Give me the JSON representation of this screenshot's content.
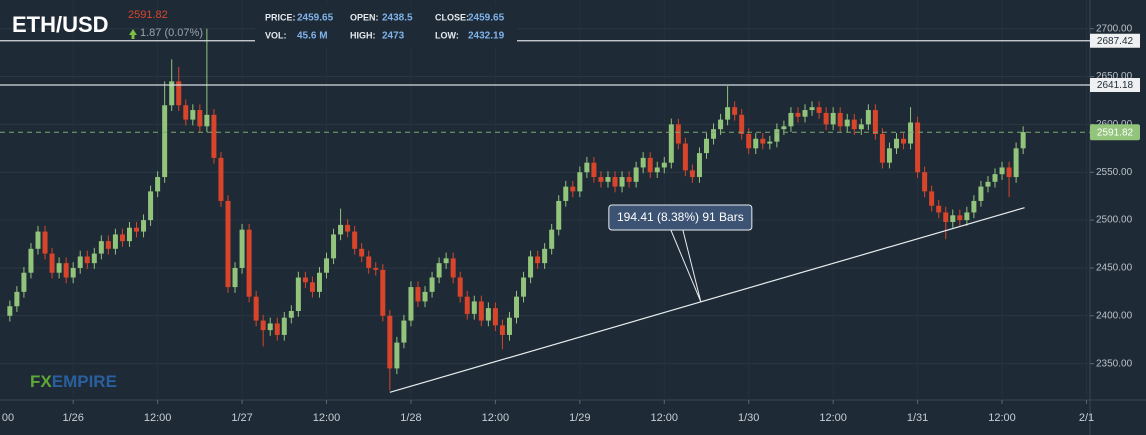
{
  "chart_data": {
    "type": "candlestick",
    "title": "ETH/USD",
    "last_price": 2591.82,
    "change": "1.87 (0.07%)",
    "stats": [
      {
        "label": "PRICE:",
        "value": 2459.65
      },
      {
        "label": "OPEN:",
        "value": 2438.5
      },
      {
        "label": "CLOSE:",
        "value": 2459.65
      },
      {
        "label": "VOL:",
        "value": "45.6 M"
      },
      {
        "label": "HIGH:",
        "value": 2473
      },
      {
        "label": "LOW:",
        "value": 2432.19
      }
    ],
    "watermark": [
      "FX",
      "EMPIRE"
    ],
    "up_color": "#92c47c",
    "down_color": "#d9452b",
    "xlim": [
      -10.4,
      144.5
    ],
    "ylim": [
      2312,
      2730
    ],
    "xticks": [
      {
        "value": -12,
        "label": "00"
      },
      {
        "value": 0,
        "label": "1/26"
      },
      {
        "value": 12,
        "label": "12:00"
      },
      {
        "value": 24,
        "label": "1/27"
      },
      {
        "value": 36,
        "label": "12:00"
      },
      {
        "value": 48,
        "label": "1/28"
      },
      {
        "value": 60,
        "label": "12:00"
      },
      {
        "value": 72,
        "label": "1/29"
      },
      {
        "value": 84,
        "label": "12:00"
      },
      {
        "value": 96,
        "label": "1/30"
      },
      {
        "value": 108,
        "label": "12:00"
      },
      {
        "value": 120,
        "label": "1/31"
      },
      {
        "value": 132,
        "label": "12:00"
      },
      {
        "value": 144,
        "label": "2/1"
      }
    ],
    "yticks": [
      {
        "value": 2350,
        "label": "2350.00"
      },
      {
        "value": 2400,
        "label": "2400.00"
      },
      {
        "value": 2450,
        "label": "2450.00"
      },
      {
        "value": 2500,
        "label": "2500.00"
      },
      {
        "value": 2550,
        "label": "2550.00"
      },
      {
        "value": 2600,
        "label": "2600.00"
      },
      {
        "value": 2650,
        "label": "2650.00"
      },
      {
        "value": 2700,
        "label": "2700.00"
      }
    ],
    "grid": true,
    "levels": [
      2687.42,
      2641.18
    ],
    "trendline": {
      "label": "194.41 (8.38%) 91 Bars",
      "x": [
        45,
        135.2
      ],
      "y": [
        2320,
        2513
      ]
    },
    "x": [
      -9,
      -8,
      -7,
      -6,
      -5,
      -4,
      -3,
      -2,
      -1,
      0,
      1,
      2,
      3,
      4,
      5,
      6,
      7,
      8,
      9,
      10,
      11,
      12,
      13,
      14,
      15,
      16,
      17,
      18,
      19,
      20,
      21,
      22,
      23,
      24,
      25,
      26,
      27,
      28,
      29,
      30,
      31,
      32,
      33,
      34,
      35,
      36,
      37,
      38,
      39,
      40,
      41,
      42,
      43,
      44,
      45,
      46,
      47,
      48,
      49,
      50,
      51,
      52,
      53,
      54,
      55,
      56,
      57,
      58,
      59,
      60,
      61,
      62,
      63,
      64,
      65,
      66,
      67,
      68,
      69,
      70,
      71,
      72,
      73,
      74,
      75,
      76,
      77,
      78,
      79,
      80,
      81,
      82,
      83,
      84,
      85,
      86,
      87,
      88,
      89,
      90,
      91,
      92,
      93,
      94,
      95,
      96,
      97,
      98,
      99,
      100,
      101,
      102,
      103,
      104,
      105,
      106,
      107,
      108,
      109,
      110,
      111,
      112,
      113,
      114,
      115,
      116,
      117,
      118,
      119,
      120,
      121,
      122,
      123,
      124,
      125,
      126,
      127,
      128,
      129,
      130,
      131,
      132,
      133,
      134,
      135
    ],
    "open": [
      2400,
      2410,
      2425,
      2445,
      2470,
      2488,
      2465,
      2445,
      2455,
      2440,
      2450,
      2462,
      2455,
      2465,
      2478,
      2470,
      2485,
      2478,
      2492,
      2488,
      2500,
      2530,
      2545,
      2620,
      2645,
      2620,
      2605,
      2615,
      2598,
      2610,
      2565,
      2520,
      2430,
      2450,
      2490,
      2420,
      2395,
      2385,
      2392,
      2380,
      2398,
      2405,
      2440,
      2435,
      2425,
      2445,
      2460,
      2485,
      2495,
      2488,
      2470,
      2462,
      2450,
      2448,
      2400,
      2345,
      2372,
      2395,
      2430,
      2415,
      2425,
      2440,
      2455,
      2460,
      2440,
      2420,
      2402,
      2415,
      2395,
      2408,
      2390,
      2380,
      2398,
      2420,
      2440,
      2462,
      2455,
      2470,
      2490,
      2520,
      2535,
      2530,
      2550,
      2560,
      2545,
      2540,
      2545,
      2535,
      2545,
      2540,
      2555,
      2565,
      2550,
      2555,
      2560,
      2600,
      2580,
      2552,
      2545,
      2570,
      2585,
      2595,
      2605,
      2618,
      2610,
      2590,
      2575,
      2585,
      2580,
      2582,
      2595,
      2598,
      2612,
      2608,
      2615,
      2618,
      2612,
      2600,
      2612,
      2598,
      2605,
      2595,
      2600,
      2615,
      2590,
      2560,
      2575,
      2585,
      2580,
      2602,
      2550,
      2530,
      2515,
      2508,
      2498,
      2505,
      2500,
      2508,
      2520,
      2535,
      2540,
      2548,
      2555,
      2545,
      2575
    ],
    "high": [
      2416,
      2431,
      2451,
      2476,
      2494,
      2494,
      2471,
      2461,
      2461,
      2456,
      2468,
      2468,
      2471,
      2484,
      2484,
      2491,
      2491,
      2498,
      2498,
      2506,
      2536,
      2551,
      2645,
      2668,
      2660,
      2626,
      2621,
      2621,
      2700,
      2616,
      2571,
      2526,
      2456,
      2496,
      2496,
      2426,
      2401,
      2398,
      2398,
      2404,
      2411,
      2446,
      2446,
      2441,
      2451,
      2466,
      2491,
      2512,
      2501,
      2494,
      2476,
      2468,
      2456,
      2454,
      2406,
      2378,
      2401,
      2436,
      2436,
      2431,
      2446,
      2461,
      2466,
      2466,
      2446,
      2426,
      2421,
      2421,
      2414,
      2414,
      2396,
      2404,
      2426,
      2446,
      2468,
      2468,
      2476,
      2496,
      2526,
      2541,
      2541,
      2556,
      2566,
      2566,
      2551,
      2551,
      2551,
      2551,
      2551,
      2561,
      2571,
      2571,
      2561,
      2566,
      2606,
      2606,
      2586,
      2558,
      2576,
      2591,
      2601,
      2611,
      2640,
      2624,
      2616,
      2596,
      2591,
      2591,
      2588,
      2601,
      2604,
      2618,
      2618,
      2621,
      2624,
      2624,
      2618,
      2618,
      2618,
      2611,
      2611,
      2606,
      2621,
      2621,
      2596,
      2581,
      2591,
      2591,
      2618,
      2608,
      2556,
      2536,
      2521,
      2514,
      2511,
      2511,
      2514,
      2526,
      2541,
      2546,
      2554,
      2561,
      2561,
      2581,
      2598
    ],
    "low": [
      2394,
      2404,
      2419,
      2439,
      2464,
      2459,
      2439,
      2439,
      2434,
      2434,
      2444,
      2449,
      2449,
      2459,
      2464,
      2464,
      2472,
      2472,
      2482,
      2482,
      2494,
      2524,
      2539,
      2614,
      2614,
      2599,
      2599,
      2592,
      2592,
      2559,
      2514,
      2424,
      2424,
      2444,
      2414,
      2389,
      2368,
      2379,
      2374,
      2374,
      2392,
      2399,
      2429,
      2419,
      2419,
      2439,
      2454,
      2479,
      2482,
      2464,
      2456,
      2444,
      2442,
      2394,
      2322,
      2339,
      2366,
      2389,
      2409,
      2409,
      2419,
      2434,
      2449,
      2434,
      2414,
      2396,
      2396,
      2389,
      2389,
      2384,
      2365,
      2374,
      2392,
      2414,
      2434,
      2449,
      2449,
      2464,
      2484,
      2514,
      2524,
      2524,
      2544,
      2539,
      2534,
      2534,
      2529,
      2529,
      2534,
      2534,
      2549,
      2544,
      2544,
      2549,
      2554,
      2574,
      2546,
      2539,
      2539,
      2564,
      2579,
      2589,
      2599,
      2604,
      2584,
      2569,
      2569,
      2574,
      2574,
      2576,
      2589,
      2592,
      2602,
      2602,
      2609,
      2606,
      2594,
      2594,
      2592,
      2592,
      2589,
      2589,
      2594,
      2584,
      2554,
      2554,
      2569,
      2574,
      2574,
      2544,
      2524,
      2509,
      2502,
      2480,
      2492,
      2494,
      2494,
      2502,
      2514,
      2529,
      2534,
      2542,
      2524,
      2539,
      2569
    ],
    "close": [
      2410,
      2425,
      2445,
      2470,
      2488,
      2465,
      2445,
      2455,
      2440,
      2450,
      2462,
      2455,
      2465,
      2478,
      2470,
      2485,
      2478,
      2492,
      2488,
      2500,
      2530,
      2545,
      2620,
      2645,
      2620,
      2605,
      2615,
      2598,
      2610,
      2565,
      2520,
      2430,
      2450,
      2490,
      2420,
      2395,
      2385,
      2392,
      2380,
      2398,
      2405,
      2440,
      2435,
      2425,
      2445,
      2460,
      2485,
      2495,
      2488,
      2470,
      2462,
      2450,
      2448,
      2400,
      2345,
      2372,
      2395,
      2430,
      2415,
      2425,
      2440,
      2455,
      2460,
      2440,
      2420,
      2402,
      2415,
      2395,
      2408,
      2390,
      2380,
      2398,
      2420,
      2440,
      2462,
      2455,
      2470,
      2490,
      2520,
      2535,
      2530,
      2550,
      2560,
      2545,
      2540,
      2545,
      2535,
      2545,
      2540,
      2555,
      2565,
      2550,
      2555,
      2560,
      2600,
      2580,
      2552,
      2545,
      2570,
      2585,
      2595,
      2605,
      2618,
      2610,
      2590,
      2575,
      2585,
      2580,
      2582,
      2595,
      2598,
      2612,
      2608,
      2615,
      2618,
      2612,
      2600,
      2612,
      2598,
      2605,
      2595,
      2600,
      2615,
      2590,
      2560,
      2575,
      2585,
      2580,
      2602,
      2550,
      2530,
      2515,
      2508,
      2498,
      2505,
      2500,
      2508,
      2520,
      2535,
      2540,
      2548,
      2555,
      2545,
      2575,
      2592
    ]
  }
}
